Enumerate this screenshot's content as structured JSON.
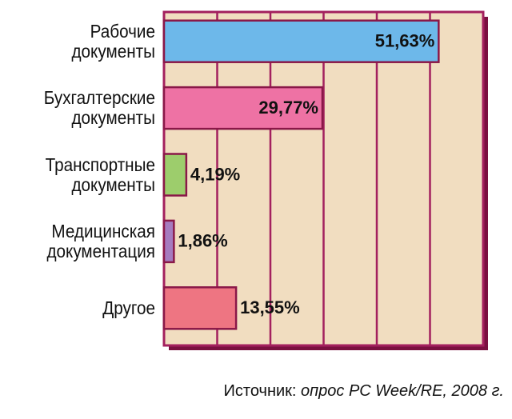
{
  "chart_data": {
    "type": "bar",
    "orientation": "horizontal",
    "categories": [
      "Рабочие\nдокументы",
      "Бухгалтерские\nдокументы",
      "Транспортные\nдокументы",
      "Медицинская\nдокументация",
      "Другое"
    ],
    "values": [
      51.63,
      29.77,
      4.19,
      1.86,
      13.55
    ],
    "value_labels": [
      "51,63%",
      "29,77%",
      "4,19%",
      "1,86%",
      "13,55%"
    ],
    "colors": [
      "#6db8ea",
      "#ee72a4",
      "#9dcd6c",
      "#a57bbf",
      "#ee7582"
    ],
    "xlim": [
      0,
      60
    ],
    "xticks": [
      0,
      10,
      20,
      30,
      40,
      50,
      60
    ],
    "grid": true,
    "source_label": "Источник:",
    "source": "опрос PC Week/RE, 2008 г."
  }
}
